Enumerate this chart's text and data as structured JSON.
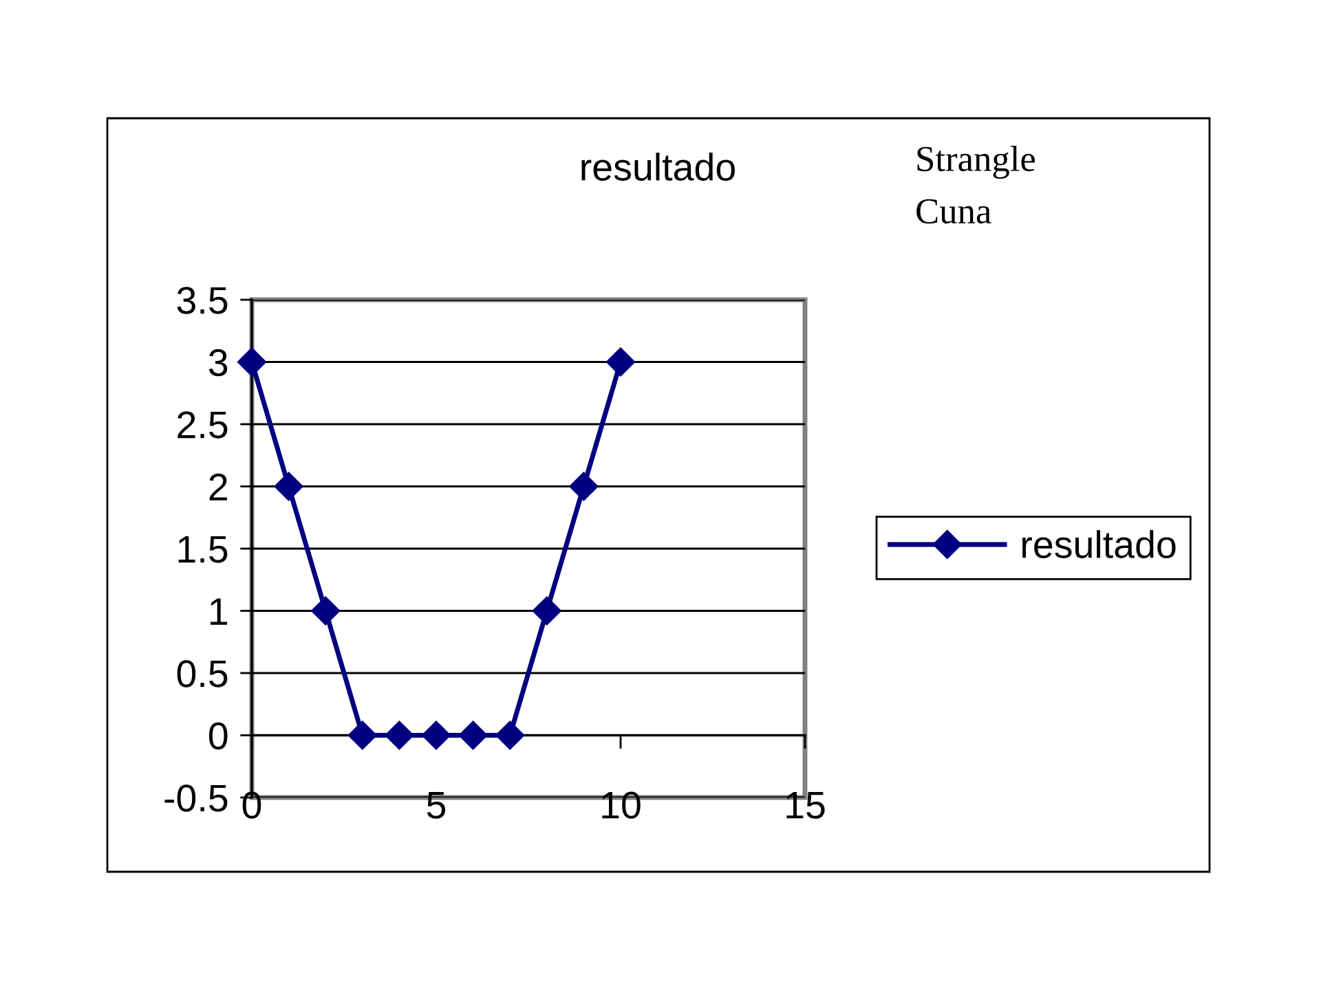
{
  "chart_data": {
    "type": "line",
    "title": "resultado",
    "annotations": [
      "Strangle",
      "Cuna"
    ],
    "x": [
      0,
      1,
      2,
      3,
      4,
      5,
      6,
      7,
      8,
      9,
      10
    ],
    "series": [
      {
        "name": "resultado",
        "color": "#000080",
        "values": [
          3,
          2,
          1,
          0,
          0,
          0,
          0,
          0,
          1,
          2,
          3
        ]
      }
    ],
    "xlim": [
      0,
      15
    ],
    "xticks": [
      0,
      5,
      10,
      15
    ],
    "ylim": [
      -0.5,
      3.5
    ],
    "yticks": [
      -0.5,
      0,
      0.5,
      1,
      1.5,
      2,
      2.5,
      3,
      3.5
    ],
    "grid": "y",
    "legend": "right",
    "marker": "diamond",
    "line_style": "solid"
  }
}
